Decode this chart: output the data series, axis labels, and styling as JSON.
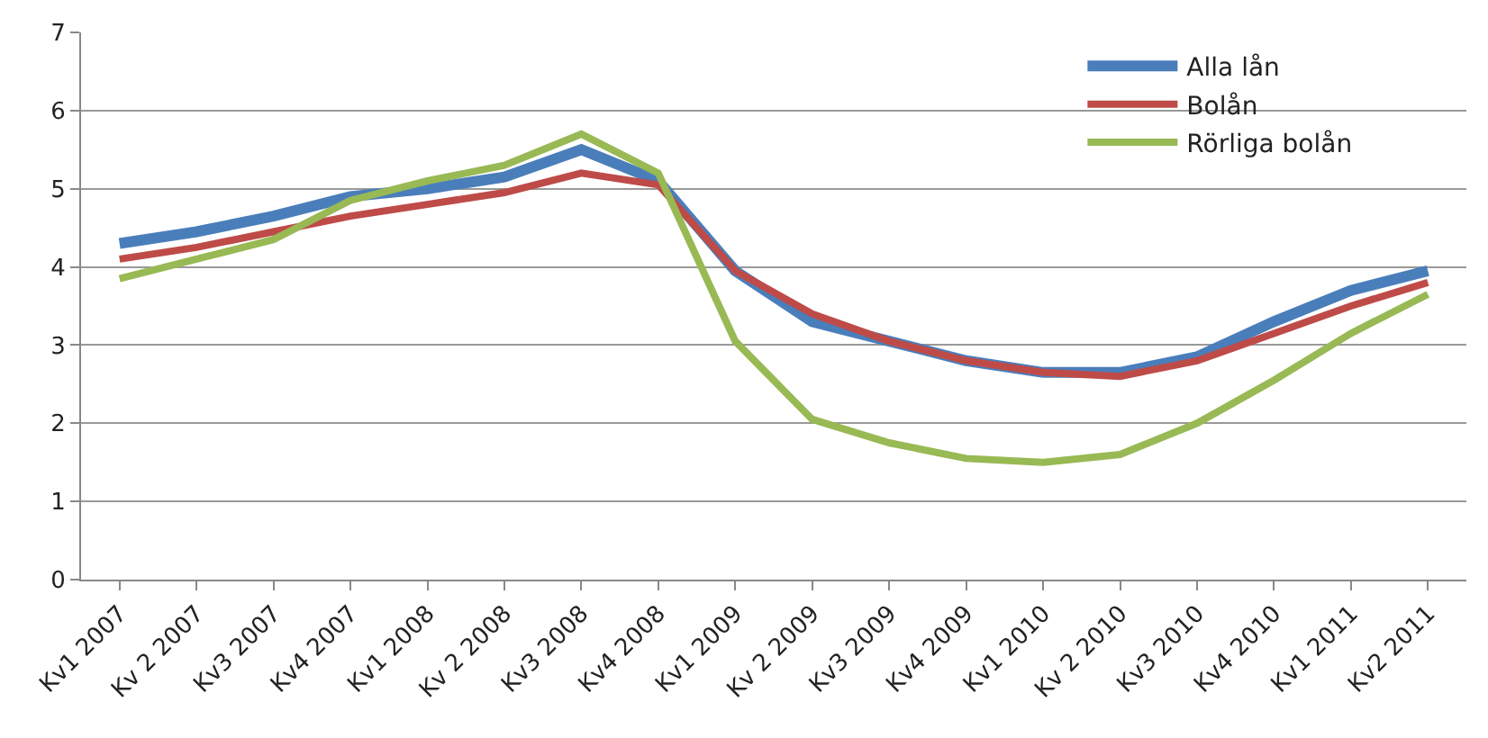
{
  "chart_data": {
    "type": "line",
    "categories": [
      "Kv1 2007",
      "Kv 2 2007",
      "Kv3 2007",
      "Kv4 2007",
      "Kv1 2008",
      "Kv 2 2008",
      "Kv3 2008",
      "Kv4 2008",
      "Kv1 2009",
      "Kv 2 2009",
      "Kv3 2009",
      "Kv4 2009",
      "Kv1 2010",
      "Kv 2 2010",
      "Kv3 2010",
      "Kv4 2010",
      "Kv1 2011",
      "Kv2 2011"
    ],
    "series": [
      {
        "name": "Alla lån",
        "color": "#4a7ebb",
        "values": [
          4.3,
          4.45,
          4.65,
          4.9,
          5.0,
          5.15,
          5.5,
          5.1,
          3.95,
          3.3,
          3.05,
          2.8,
          2.65,
          2.65,
          2.85,
          3.3,
          3.7,
          3.95
        ]
      },
      {
        "name": "Bolån",
        "color": "#be4b48",
        "values": [
          4.1,
          4.25,
          4.45,
          4.65,
          4.8,
          4.95,
          5.2,
          5.05,
          3.95,
          3.4,
          3.05,
          2.8,
          2.65,
          2.6,
          2.8,
          3.15,
          3.5,
          3.8
        ]
      },
      {
        "name": "Rörliga bolån",
        "color": "#98b954",
        "values": [
          3.85,
          4.1,
          4.35,
          4.85,
          5.1,
          5.3,
          5.7,
          5.2,
          3.05,
          2.05,
          1.75,
          1.55,
          1.5,
          1.6,
          2.0,
          2.55,
          3.15,
          3.65
        ]
      }
    ],
    "ylim": [
      0,
      7
    ],
    "yticks": [
      0,
      1,
      2,
      3,
      4,
      5,
      6,
      7
    ],
    "grid": "y",
    "legend": "top right",
    "marker": "none",
    "line_style": "solid"
  }
}
